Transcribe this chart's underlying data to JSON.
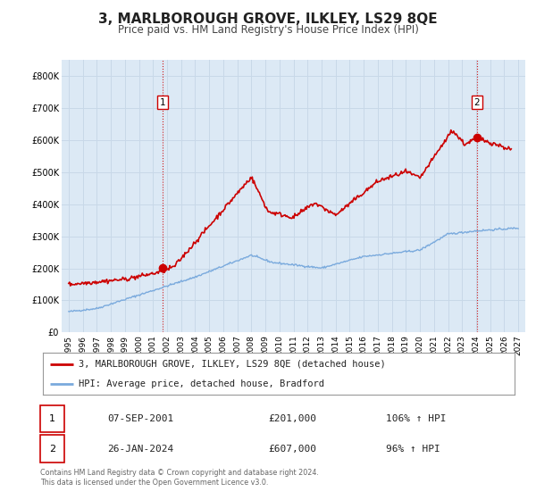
{
  "title": "3, MARLBOROUGH GROVE, ILKLEY, LS29 8QE",
  "subtitle": "Price paid vs. HM Land Registry's House Price Index (HPI)",
  "title_fontsize": 11,
  "subtitle_fontsize": 8.5,
  "background_color": "#ffffff",
  "plot_bg_color": "#dce9f5",
  "grid_color": "#c8d8e8",
  "red_line_color": "#cc0000",
  "blue_line_color": "#7aaadd",
  "ylim": [
    0,
    850000
  ],
  "yticks": [
    0,
    100000,
    200000,
    300000,
    400000,
    500000,
    600000,
    700000,
    800000
  ],
  "ytick_labels": [
    "£0",
    "£100K",
    "£200K",
    "£300K",
    "£400K",
    "£500K",
    "£600K",
    "£700K",
    "£800K"
  ],
  "xlim_start": 1994.5,
  "xlim_end": 2027.5,
  "xticks": [
    1995,
    1996,
    1997,
    1998,
    1999,
    2000,
    2001,
    2002,
    2003,
    2004,
    2005,
    2006,
    2007,
    2008,
    2009,
    2010,
    2011,
    2012,
    2013,
    2014,
    2015,
    2016,
    2017,
    2018,
    2019,
    2020,
    2021,
    2022,
    2023,
    2024,
    2025,
    2026,
    2027
  ],
  "sale1_x": 2001.69,
  "sale1_y": 201000,
  "sale1_label": "1",
  "sale1_date": "07-SEP-2001",
  "sale1_price": "£201,000",
  "sale1_hpi": "106% ↑ HPI",
  "sale2_x": 2024.07,
  "sale2_y": 607000,
  "sale2_label": "2",
  "sale2_date": "26-JAN-2024",
  "sale2_price": "£607,000",
  "sale2_hpi": "96% ↑ HPI",
  "legend_line1": "3, MARLBOROUGH GROVE, ILKLEY, LS29 8QE (detached house)",
  "legend_line2": "HPI: Average price, detached house, Bradford",
  "footer": "Contains HM Land Registry data © Crown copyright and database right 2024.\nThis data is licensed under the Open Government Licence v3.0."
}
